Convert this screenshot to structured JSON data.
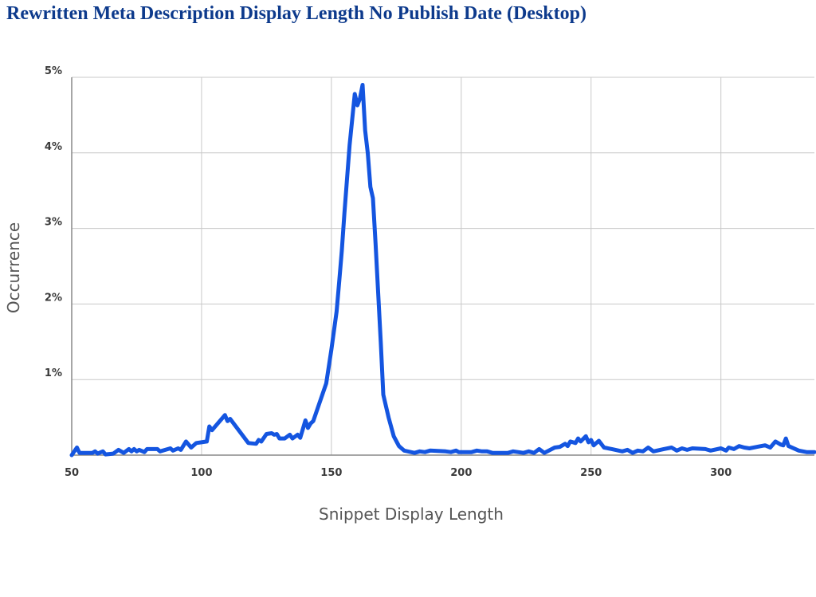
{
  "chart_data": {
    "type": "line",
    "title": "Rewritten Meta Description Display Length No Publish Date (Desktop)",
    "x_label": "Snippet Display Length",
    "y_label": "Occurrence",
    "color": "#1455e0",
    "grid": true,
    "xlim": [
      50,
      336
    ],
    "ylim": [
      0,
      5
    ],
    "xticks": [
      50,
      100,
      150,
      200,
      250,
      300
    ],
    "yticks": [
      {
        "value": 1,
        "label": "1%"
      },
      {
        "value": 2,
        "label": "2%"
      },
      {
        "value": 3,
        "label": "3%"
      },
      {
        "value": 4,
        "label": "4%"
      },
      {
        "value": 5,
        "label": "5%"
      }
    ],
    "x": [
      50,
      52,
      53,
      58,
      59,
      60,
      62,
      63,
      66,
      68,
      70,
      72,
      73,
      74,
      75,
      76,
      78,
      79,
      83,
      84,
      88,
      89,
      91,
      92,
      94,
      96,
      98,
      102,
      103,
      104,
      109,
      110,
      111,
      118,
      121,
      122,
      123,
      125,
      127,
      128,
      129,
      130,
      132,
      134,
      135,
      137,
      138,
      140,
      141,
      142,
      143,
      148,
      150,
      152,
      153,
      154,
      155,
      157,
      159,
      160,
      161,
      162,
      163,
      164,
      165,
      166,
      167,
      169,
      170,
      172,
      174,
      176,
      178,
      182,
      184,
      186,
      188,
      194,
      196,
      198,
      199,
      204,
      206,
      208,
      210,
      212,
      218,
      220,
      224,
      226,
      228,
      230,
      232,
      236,
      238,
      240,
      241,
      242,
      244,
      245,
      246,
      248,
      249,
      250,
      251,
      253,
      255,
      258,
      262,
      264,
      266,
      268,
      270,
      272,
      274,
      278,
      281,
      283,
      285,
      287,
      289,
      294,
      296,
      300,
      302,
      303,
      305,
      307,
      309,
      311,
      314,
      317,
      319,
      321,
      323,
      324,
      325,
      326,
      330,
      333,
      336
    ],
    "values": [
      0,
      0.1,
      0.03,
      0.03,
      0.05,
      0.02,
      0.05,
      0.01,
      0.02,
      0.07,
      0.03,
      0.08,
      0.05,
      0.08,
      0.05,
      0.07,
      0.04,
      0.08,
      0.08,
      0.05,
      0.09,
      0.06,
      0.09,
      0.07,
      0.18,
      0.1,
      0.16,
      0.18,
      0.38,
      0.33,
      0.53,
      0.45,
      0.48,
      0.16,
      0.15,
      0.2,
      0.18,
      0.28,
      0.29,
      0.27,
      0.28,
      0.22,
      0.22,
      0.27,
      0.22,
      0.27,
      0.23,
      0.46,
      0.36,
      0.42,
      0.45,
      0.95,
      1.4,
      1.9,
      2.3,
      2.7,
      3.2,
      4.1,
      4.78,
      4.63,
      4.72,
      4.9,
      4.3,
      4.0,
      3.55,
      3.4,
      2.8,
      1.5,
      0.8,
      0.5,
      0.25,
      0.12,
      0.06,
      0.03,
      0.05,
      0.04,
      0.06,
      0.05,
      0.04,
      0.06,
      0.04,
      0.04,
      0.06,
      0.05,
      0.05,
      0.03,
      0.03,
      0.05,
      0.03,
      0.05,
      0.03,
      0.08,
      0.03,
      0.1,
      0.11,
      0.15,
      0.12,
      0.18,
      0.16,
      0.22,
      0.18,
      0.25,
      0.17,
      0.2,
      0.13,
      0.19,
      0.1,
      0.08,
      0.05,
      0.07,
      0.03,
      0.06,
      0.05,
      0.1,
      0.05,
      0.08,
      0.1,
      0.06,
      0.09,
      0.07,
      0.09,
      0.08,
      0.06,
      0.09,
      0.06,
      0.1,
      0.08,
      0.12,
      0.1,
      0.09,
      0.11,
      0.13,
      0.1,
      0.18,
      0.14,
      0.13,
      0.22,
      0.12,
      0.06,
      0.04,
      0.04
    ]
  }
}
